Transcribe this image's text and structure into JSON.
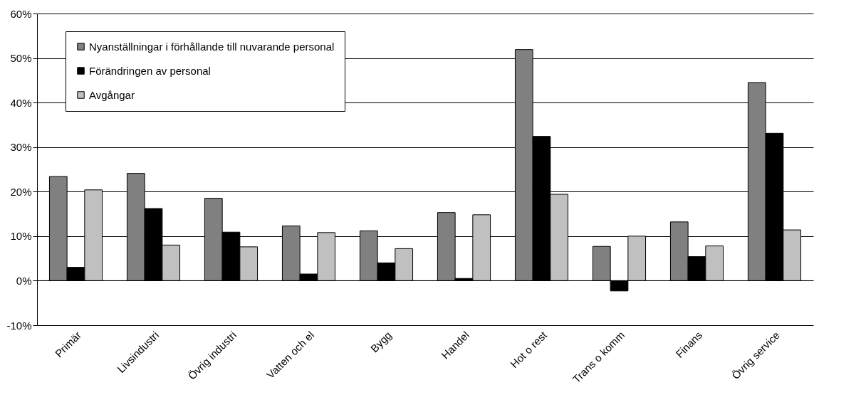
{
  "chart_data": {
    "type": "bar",
    "categories": [
      "Primär",
      "Livsindustri",
      "Övrig industri",
      "Vatten och el",
      "Bygg",
      "Handel",
      "Hot o rest",
      "Trans o komm",
      "Finans",
      "Övrig service"
    ],
    "series": [
      {
        "name": "Nyanställningar i förhållande till nuvarande personal",
        "color": "#808080",
        "values": [
          23.4,
          24.1,
          18.5,
          12.3,
          11.2,
          15.3,
          51.9,
          7.7,
          13.2,
          44.5
        ]
      },
      {
        "name": "Förändringen av personal",
        "color": "#000000",
        "values": [
          3.0,
          16.2,
          10.9,
          1.5,
          4.0,
          0.5,
          32.4,
          -2.3,
          5.4,
          33.1
        ]
      },
      {
        "name": "Avgångar",
        "color": "#c0c0c0",
        "values": [
          20.4,
          8.0,
          7.6,
          10.8,
          7.2,
          14.8,
          19.4,
          10.0,
          7.8,
          11.4
        ]
      }
    ],
    "ylim": [
      -10,
      60
    ],
    "yticks": [
      {
        "value": -10,
        "label": "-10%"
      },
      {
        "value": 0,
        "label": "0%"
      },
      {
        "value": 10,
        "label": "10%"
      },
      {
        "value": 20,
        "label": "20%"
      },
      {
        "value": 30,
        "label": "30%"
      },
      {
        "value": 40,
        "label": "40%"
      },
      {
        "value": 50,
        "label": "50%"
      },
      {
        "value": 60,
        "label": "60%"
      }
    ],
    "grid": "y",
    "legend": "top left"
  }
}
